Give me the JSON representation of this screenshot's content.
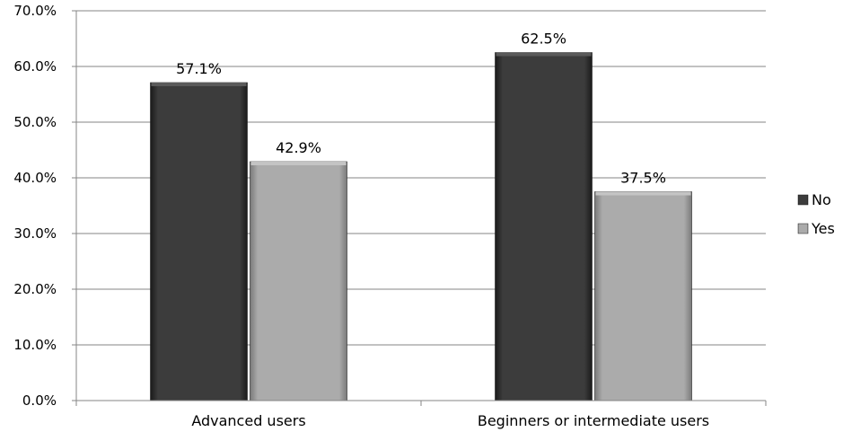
{
  "chart_data": {
    "type": "bar",
    "categories": [
      "Advanced users",
      "Beginners or intermediate users"
    ],
    "series": [
      {
        "name": "No",
        "values": [
          57.1,
          62.5
        ],
        "color": "#3a3a3a"
      },
      {
        "name": "Yes",
        "values": [
          42.9,
          37.5
        ],
        "color": "#a9a9a9"
      }
    ],
    "data_labels": [
      [
        "57.1%",
        "62.5%"
      ],
      [
        "42.9%",
        "37.5%"
      ]
    ],
    "y_ticks": [
      "0.0%",
      "10.0%",
      "20.0%",
      "30.0%",
      "40.0%",
      "50.0%",
      "60.0%",
      "70.0%"
    ],
    "ylim": [
      0,
      70
    ],
    "grid": true,
    "legend_position": "right"
  }
}
